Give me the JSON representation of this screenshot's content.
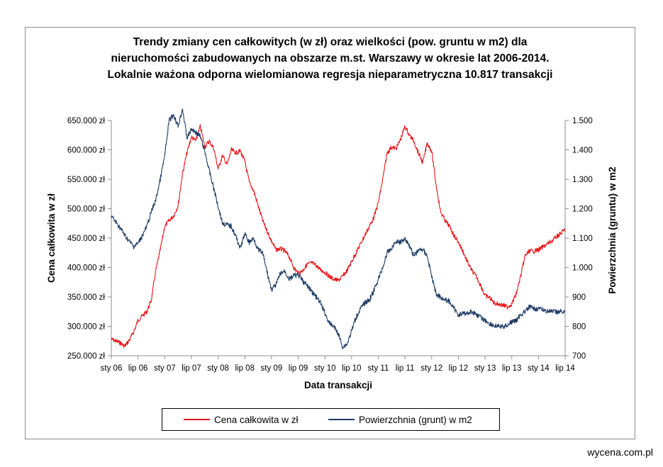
{
  "chart_data": {
    "type": "line",
    "title_lines": [
      "Trendy zmiany cen całkowitych (w zł) oraz wielkości (pow. gruntu w m2) dla",
      "nieruchomości zabudowanych  na obszarze m.st. Warszawy w okresie lat 2006-2014.",
      "Lokalnie ważona odporna  wielomianowa regresja nieparametryczna 10.817 transakcji"
    ],
    "xlabel": "Data transakcji",
    "ylabel_left": "Cena całkowita w zł",
    "ylabel_right": "Powierzchnia (gruntu) w m2",
    "x_ticks": [
      "sty 06",
      "lip 06",
      "sty 07",
      "lip 07",
      "sty 08",
      "lip 08",
      "sty 09",
      "lip 09",
      "sty 10",
      "lip 10",
      "sty 11",
      "lip 11",
      "sty 12",
      "lip 12",
      "sty 13",
      "lip 13",
      "sty 14",
      "lip 14"
    ],
    "x_range": [
      "2006-01",
      "2014-07"
    ],
    "ylim_left": [
      250000,
      650000
    ],
    "y_ticks_left": [
      "250.000 zł",
      "300.000 zł",
      "350.000 zł",
      "400.000 zł",
      "450.000 zł",
      "500.000 zł",
      "550.000 zł",
      "600.000 zł",
      "650.000 zł"
    ],
    "ylim_right": [
      700,
      1500
    ],
    "y_ticks_right": [
      "700",
      "800",
      "900",
      "1.000",
      "1.100",
      "1.200",
      "1.300",
      "1.400",
      "1.500"
    ],
    "legend_position": "bottom",
    "series": [
      {
        "name": "Cena całkowita w zł",
        "color": "#e8161b",
        "axis": "left",
        "points": [
          [
            "2006-01-01",
            278000
          ],
          [
            "2006-02-01",
            275000
          ],
          [
            "2006-03-01",
            272000
          ],
          [
            "2006-04-01",
            266000
          ],
          [
            "2006-05-01",
            276000
          ],
          [
            "2006-06-01",
            290000
          ],
          [
            "2006-07-01",
            310000
          ],
          [
            "2006-08-01",
            318000
          ],
          [
            "2006-09-01",
            325000
          ],
          [
            "2006-10-01",
            345000
          ],
          [
            "2006-11-01",
            395000
          ],
          [
            "2006-12-01",
            430000
          ],
          [
            "2007-01-01",
            470000
          ],
          [
            "2007-02-01",
            480000
          ],
          [
            "2007-03-01",
            488000
          ],
          [
            "2007-04-01",
            505000
          ],
          [
            "2007-05-01",
            560000
          ],
          [
            "2007-06-01",
            595000
          ],
          [
            "2007-07-01",
            622000
          ],
          [
            "2007-08-01",
            615000
          ],
          [
            "2007-09-01",
            640000
          ],
          [
            "2007-10-01",
            605000
          ],
          [
            "2007-11-01",
            615000
          ],
          [
            "2007-12-01",
            603000
          ],
          [
            "2008-01-01",
            568000
          ],
          [
            "2008-02-01",
            590000
          ],
          [
            "2008-03-01",
            575000
          ],
          [
            "2008-04-01",
            600000
          ],
          [
            "2008-05-01",
            595000
          ],
          [
            "2008-06-01",
            598000
          ],
          [
            "2008-07-01",
            580000
          ],
          [
            "2008-08-01",
            545000
          ],
          [
            "2008-09-01",
            530000
          ],
          [
            "2008-10-01",
            505000
          ],
          [
            "2008-11-01",
            480000
          ],
          [
            "2008-12-01",
            462000
          ],
          [
            "2009-01-01",
            445000
          ],
          [
            "2009-02-01",
            430000
          ],
          [
            "2009-03-01",
            432000
          ],
          [
            "2009-04-01",
            428000
          ],
          [
            "2009-05-01",
            418000
          ],
          [
            "2009-06-01",
            400000
          ],
          [
            "2009-07-01",
            390000
          ],
          [
            "2009-08-01",
            395000
          ],
          [
            "2009-09-01",
            405000
          ],
          [
            "2009-10-01",
            408000
          ],
          [
            "2009-11-01",
            404000
          ],
          [
            "2009-12-01",
            396000
          ],
          [
            "2010-01-01",
            392000
          ],
          [
            "2010-02-01",
            385000
          ],
          [
            "2010-03-01",
            380000
          ],
          [
            "2010-04-01",
            378000
          ],
          [
            "2010-05-01",
            385000
          ],
          [
            "2010-06-01",
            395000
          ],
          [
            "2010-07-01",
            410000
          ],
          [
            "2010-08-01",
            425000
          ],
          [
            "2010-09-01",
            440000
          ],
          [
            "2010-10-01",
            455000
          ],
          [
            "2010-11-01",
            470000
          ],
          [
            "2010-12-01",
            485000
          ],
          [
            "2011-01-01",
            510000
          ],
          [
            "2011-02-01",
            550000
          ],
          [
            "2011-03-01",
            595000
          ],
          [
            "2011-04-01",
            605000
          ],
          [
            "2011-05-01",
            602000
          ],
          [
            "2011-06-01",
            618000
          ],
          [
            "2011-07-01",
            640000
          ],
          [
            "2011-08-01",
            625000
          ],
          [
            "2011-09-01",
            615000
          ],
          [
            "2011-10-01",
            595000
          ],
          [
            "2011-11-01",
            578000
          ],
          [
            "2011-12-01",
            612000
          ],
          [
            "2012-01-01",
            598000
          ],
          [
            "2012-02-01",
            540000
          ],
          [
            "2012-03-01",
            495000
          ],
          [
            "2012-04-01",
            480000
          ],
          [
            "2012-05-01",
            470000
          ],
          [
            "2012-06-01",
            455000
          ],
          [
            "2012-07-01",
            443000
          ],
          [
            "2012-08-01",
            428000
          ],
          [
            "2012-09-01",
            410000
          ],
          [
            "2012-10-01",
            395000
          ],
          [
            "2012-11-01",
            385000
          ],
          [
            "2012-12-01",
            370000
          ],
          [
            "2013-01-01",
            352000
          ],
          [
            "2013-02-01",
            349000
          ],
          [
            "2013-03-01",
            340000
          ],
          [
            "2013-04-01",
            338000
          ],
          [
            "2013-05-01",
            336000
          ],
          [
            "2013-06-01",
            333000
          ],
          [
            "2013-07-01",
            338000
          ],
          [
            "2013-08-01",
            355000
          ],
          [
            "2013-09-01",
            385000
          ],
          [
            "2013-10-01",
            420000
          ],
          [
            "2013-11-01",
            428000
          ],
          [
            "2013-12-01",
            428000
          ],
          [
            "2014-01-01",
            430000
          ],
          [
            "2014-02-01",
            435000
          ],
          [
            "2014-03-01",
            440000
          ],
          [
            "2014-04-01",
            445000
          ],
          [
            "2014-05-01",
            452000
          ],
          [
            "2014-06-01",
            458000
          ],
          [
            "2014-07-01",
            465000
          ]
        ]
      },
      {
        "name": "Powierzchnia (grunt) w m2",
        "color": "#1f3b66",
        "axis": "right",
        "points": [
          [
            "2006-01-01",
            1175
          ],
          [
            "2006-02-01",
            1155
          ],
          [
            "2006-03-01",
            1135
          ],
          [
            "2006-04-01",
            1110
          ],
          [
            "2006-05-01",
            1090
          ],
          [
            "2006-06-01",
            1072
          ],
          [
            "2006-07-01",
            1082
          ],
          [
            "2006-08-01",
            1110
          ],
          [
            "2006-09-01",
            1140
          ],
          [
            "2006-10-01",
            1190
          ],
          [
            "2006-11-01",
            1230
          ],
          [
            "2006-12-01",
            1300
          ],
          [
            "2007-01-01",
            1380
          ],
          [
            "2007-02-01",
            1500
          ],
          [
            "2007-03-01",
            1520
          ],
          [
            "2007-04-01",
            1480
          ],
          [
            "2007-05-01",
            1540
          ],
          [
            "2007-06-01",
            1440
          ],
          [
            "2007-07-01",
            1470
          ],
          [
            "2007-08-01",
            1460
          ],
          [
            "2007-09-01",
            1445
          ],
          [
            "2007-10-01",
            1395
          ],
          [
            "2007-11-01",
            1330
          ],
          [
            "2007-12-01",
            1270
          ],
          [
            "2008-01-01",
            1210
          ],
          [
            "2008-02-01",
            1150
          ],
          [
            "2008-03-01",
            1145
          ],
          [
            "2008-04-01",
            1140
          ],
          [
            "2008-05-01",
            1105
          ],
          [
            "2008-06-01",
            1065
          ],
          [
            "2008-07-01",
            1115
          ],
          [
            "2008-08-01",
            1085
          ],
          [
            "2008-09-01",
            1100
          ],
          [
            "2008-10-01",
            1060
          ],
          [
            "2008-11-01",
            1050
          ],
          [
            "2008-12-01",
            985
          ],
          [
            "2009-01-01",
            925
          ],
          [
            "2009-02-01",
            940
          ],
          [
            "2009-03-01",
            980
          ],
          [
            "2009-04-01",
            988
          ],
          [
            "2009-05-01",
            960
          ],
          [
            "2009-06-01",
            972
          ],
          [
            "2009-07-01",
            975
          ],
          [
            "2009-08-01",
            955
          ],
          [
            "2009-09-01",
            938
          ],
          [
            "2009-10-01",
            920
          ],
          [
            "2009-11-01",
            900
          ],
          [
            "2009-12-01",
            880
          ],
          [
            "2010-01-01",
            845
          ],
          [
            "2010-02-01",
            810
          ],
          [
            "2010-03-01",
            800
          ],
          [
            "2010-04-01",
            775
          ],
          [
            "2010-05-01",
            730
          ],
          [
            "2010-06-01",
            740
          ],
          [
            "2010-07-01",
            785
          ],
          [
            "2010-08-01",
            830
          ],
          [
            "2010-09-01",
            860
          ],
          [
            "2010-10-01",
            880
          ],
          [
            "2010-11-01",
            890
          ],
          [
            "2010-12-01",
            920
          ],
          [
            "2011-01-01",
            960
          ],
          [
            "2011-02-01",
            1000
          ],
          [
            "2011-03-01",
            1050
          ],
          [
            "2011-04-01",
            1065
          ],
          [
            "2011-05-01",
            1090
          ],
          [
            "2011-06-01",
            1085
          ],
          [
            "2011-07-01",
            1100
          ],
          [
            "2011-08-01",
            1075
          ],
          [
            "2011-09-01",
            1040
          ],
          [
            "2011-10-01",
            1058
          ],
          [
            "2011-11-01",
            1062
          ],
          [
            "2011-12-01",
            1040
          ],
          [
            "2012-01-01",
            970
          ],
          [
            "2012-02-01",
            910
          ],
          [
            "2012-03-01",
            900
          ],
          [
            "2012-04-01",
            890
          ],
          [
            "2012-05-01",
            885
          ],
          [
            "2012-06-01",
            860
          ],
          [
            "2012-07-01",
            840
          ],
          [
            "2012-08-01",
            843
          ],
          [
            "2012-09-01",
            845
          ],
          [
            "2012-10-01",
            850
          ],
          [
            "2012-11-01",
            842
          ],
          [
            "2012-12-01",
            830
          ],
          [
            "2013-01-01",
            820
          ],
          [
            "2013-02-01",
            810
          ],
          [
            "2013-03-01",
            802
          ],
          [
            "2013-04-01",
            800
          ],
          [
            "2013-05-01",
            798
          ],
          [
            "2013-06-01",
            805
          ],
          [
            "2013-07-01",
            815
          ],
          [
            "2013-08-01",
            820
          ],
          [
            "2013-09-01",
            840
          ],
          [
            "2013-10-01",
            850
          ],
          [
            "2013-11-01",
            866
          ],
          [
            "2013-12-01",
            860
          ],
          [
            "2014-01-01",
            860
          ],
          [
            "2014-02-01",
            856
          ],
          [
            "2014-03-01",
            852
          ],
          [
            "2014-04-01",
            850
          ],
          [
            "2014-05-01",
            848
          ],
          [
            "2014-06-01",
            850
          ],
          [
            "2014-07-01",
            852
          ]
        ]
      }
    ]
  },
  "footer": {
    "source": "wycena.com.pl"
  }
}
